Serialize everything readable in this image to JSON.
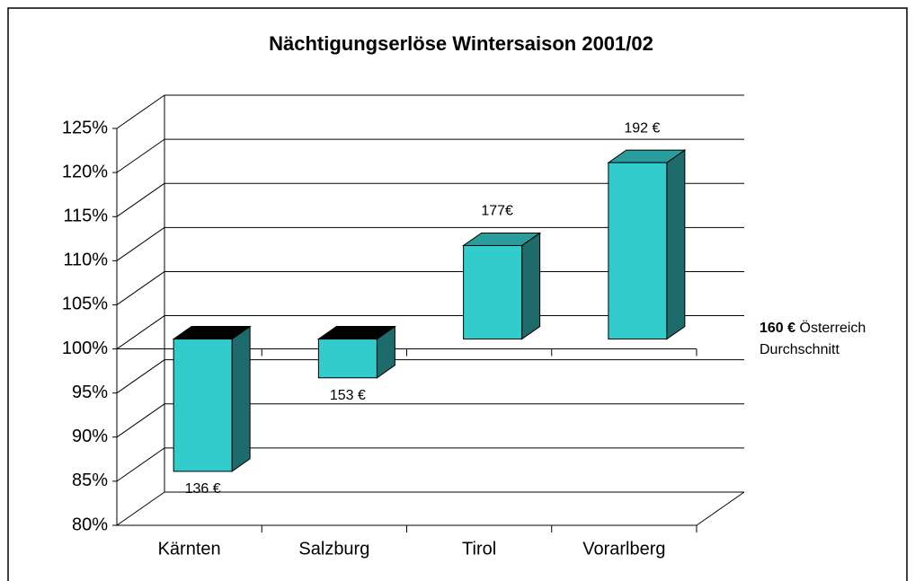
{
  "chart_data": {
    "type": "bar3d",
    "title": "Nächtigungserlöse Wintersaison 2001/02",
    "categories": [
      "Kärnten",
      "Salzburg",
      "Tirol",
      "Vorarlberg"
    ],
    "values": [
      85,
      95.6,
      110.6,
      120
    ],
    "bar_annotations": [
      "136 €",
      "153 €",
      "177€",
      "192 €"
    ],
    "baseline": 100,
    "baseline_annotation": {
      "amount": "160 €",
      "line1": "Österreich",
      "line2": "Durchschnitt"
    },
    "colors": {
      "front": "#33cccc",
      "side": "#1d6b6b",
      "top": "#2a9c9c",
      "underside": "#000000"
    },
    "ylim": [
      80,
      125
    ],
    "yticks": [
      {
        "value": 80,
        "label": "80%"
      },
      {
        "value": 85,
        "label": "85%"
      },
      {
        "value": 90,
        "label": "90%"
      },
      {
        "value": 95,
        "label": "95%"
      },
      {
        "value": 100,
        "label": "100%"
      },
      {
        "value": 105,
        "label": "105%"
      },
      {
        "value": 110,
        "label": "110%"
      },
      {
        "value": 115,
        "label": "115%"
      },
      {
        "value": 120,
        "label": "120%"
      },
      {
        "value": 125,
        "label": "125%"
      }
    ],
    "grid": true
  }
}
